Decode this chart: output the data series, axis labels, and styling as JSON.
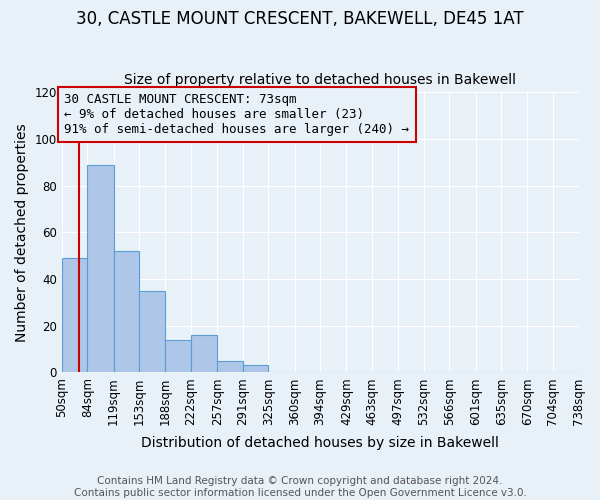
{
  "title": "30, CASTLE MOUNT CRESCENT, BAKEWELL, DE45 1AT",
  "subtitle": "Size of property relative to detached houses in Bakewell",
  "xlabel": "Distribution of detached houses by size in Bakewell",
  "ylabel": "Number of detached properties",
  "bin_edges": [
    50,
    84,
    119,
    153,
    188,
    222,
    257,
    291,
    325,
    360,
    394,
    429,
    463,
    497,
    532,
    566,
    601,
    635,
    670,
    704,
    738
  ],
  "bin_labels": [
    "50sqm",
    "84sqm",
    "119sqm",
    "153sqm",
    "188sqm",
    "222sqm",
    "257sqm",
    "291sqm",
    "325sqm",
    "360sqm",
    "394sqm",
    "429sqm",
    "463sqm",
    "497sqm",
    "532sqm",
    "566sqm",
    "601sqm",
    "635sqm",
    "670sqm",
    "704sqm",
    "738sqm"
  ],
  "bar_heights": [
    49,
    89,
    52,
    35,
    14,
    16,
    5,
    3,
    0,
    0,
    0,
    0,
    0,
    0,
    0,
    0,
    0,
    0,
    0,
    0
  ],
  "bar_color": "#aec6e8",
  "bar_edge_color": "#5a9fd4",
  "background_color": "#e8f0f8",
  "ylim": [
    0,
    120
  ],
  "yticks": [
    0,
    20,
    40,
    60,
    80,
    100,
    120
  ],
  "property_line_x": 73,
  "property_line_color": "#cc0000",
  "annotation_box_color": "#cc0000",
  "annotation_lines": [
    "30 CASTLE MOUNT CRESCENT: 73sqm",
    "← 9% of detached houses are smaller (23)",
    "91% of semi-detached houses are larger (240) →"
  ],
  "footer_lines": [
    "Contains HM Land Registry data © Crown copyright and database right 2024.",
    "Contains public sector information licensed under the Open Government Licence v3.0."
  ],
  "title_fontsize": 12,
  "subtitle_fontsize": 10,
  "axis_label_fontsize": 10,
  "tick_label_fontsize": 8.5,
  "annotation_fontsize": 9,
  "footer_fontsize": 7.5
}
